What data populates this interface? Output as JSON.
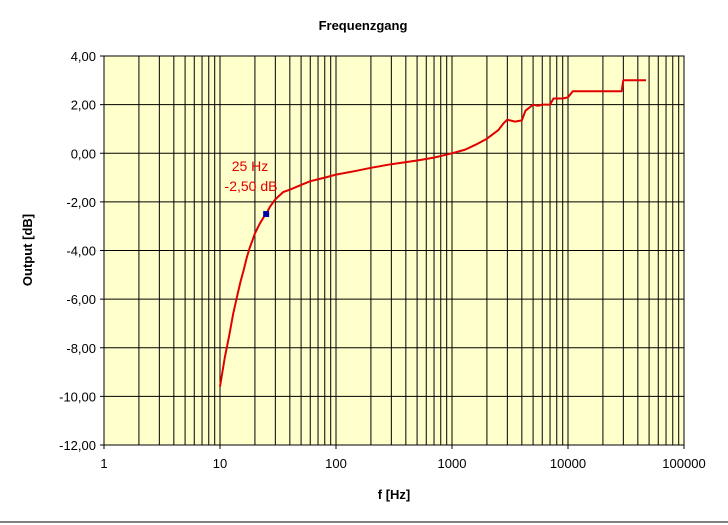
{
  "chart_data": {
    "type": "line",
    "title": "Frequenzgang",
    "xlabel": "f [Hz]",
    "ylabel": "Output [dB]",
    "xscale": "log",
    "xlim": [
      1,
      100000
    ],
    "ylim": [
      -12,
      4
    ],
    "x_tick_labels": [
      "1",
      "10",
      "100",
      "1000",
      "10000",
      "100000"
    ],
    "y_tick_labels": [
      "4,00",
      "2,00",
      "0,00",
      "-2,00",
      "-4,00",
      "-6,00",
      "-8,00",
      "-10,00",
      "-12,00"
    ],
    "grid": true,
    "legend": "none",
    "colors": {
      "plot_background": "#ffffcc",
      "series_line": "#e00000",
      "marker": "#0000aa",
      "annotation": "#e00000",
      "grid": "#000000"
    },
    "series": [
      {
        "x": [
          10,
          11,
          12,
          13,
          14,
          15,
          16,
          17,
          18,
          19,
          20,
          22,
          24,
          25,
          27,
          30,
          35,
          40,
          50,
          60,
          80,
          100,
          150,
          200,
          300,
          500,
          700,
          1000,
          1300,
          1600,
          2000,
          2500,
          2800,
          3000,
          3500,
          4000,
          4300,
          5000,
          5500,
          6000,
          7000,
          7500,
          8000,
          9000,
          10000,
          11000,
          15000,
          20000,
          25000,
          29000,
          30000,
          35000,
          40000,
          47000
        ],
        "y": [
          -9.6,
          -8.4,
          -7.5,
          -6.6,
          -5.9,
          -5.3,
          -4.8,
          -4.3,
          -3.9,
          -3.6,
          -3.3,
          -2.9,
          -2.6,
          -2.5,
          -2.2,
          -1.9,
          -1.6,
          -1.5,
          -1.3,
          -1.15,
          -1.0,
          -0.88,
          -0.72,
          -0.6,
          -0.45,
          -0.3,
          -0.18,
          0.0,
          0.15,
          0.35,
          0.6,
          0.95,
          1.25,
          1.38,
          1.3,
          1.35,
          1.75,
          2.0,
          1.95,
          2.0,
          2.0,
          2.25,
          2.25,
          2.25,
          2.3,
          2.55,
          2.55,
          2.55,
          2.55,
          2.55,
          3.0,
          3.0,
          3.0,
          3.0
        ]
      }
    ],
    "marker_point": {
      "x": 25,
      "y": -2.5
    },
    "annotation": {
      "line1": "25 Hz",
      "line2": "-2,50 dB",
      "x": 25,
      "y": -2.5
    }
  }
}
